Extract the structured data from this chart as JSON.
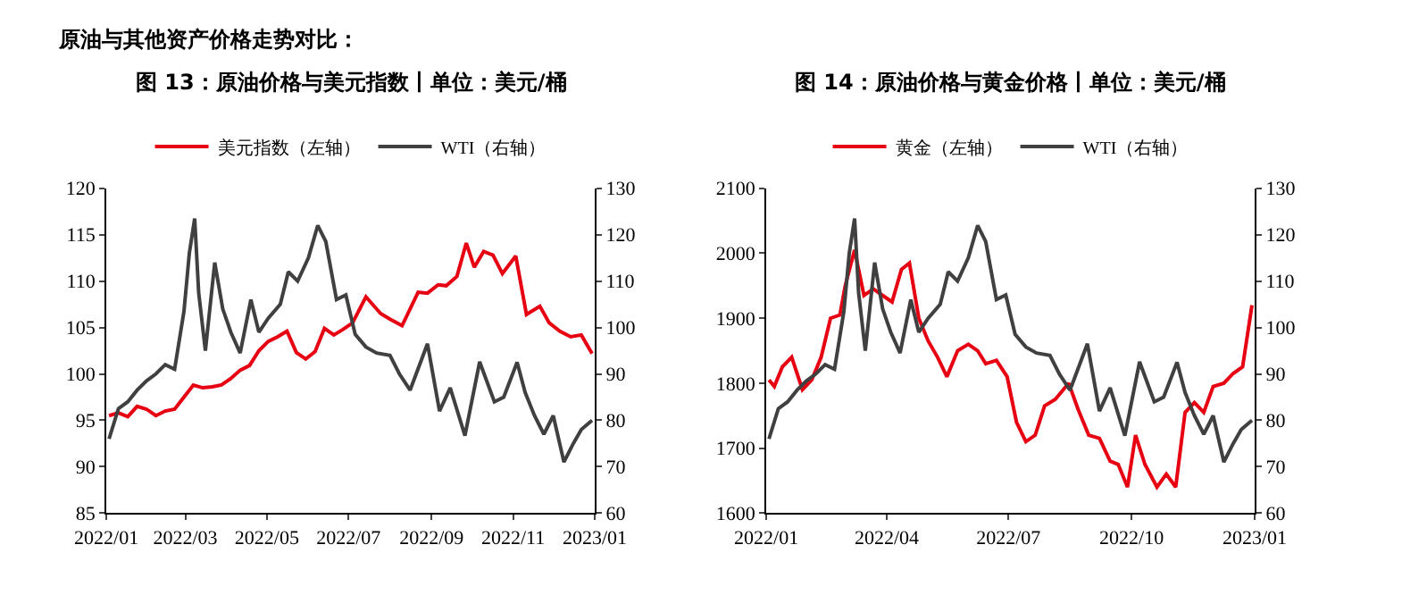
{
  "chart_data": [
    {
      "type": "line",
      "title": "图 13：原油价格与美元指数丨单位：美元/桶",
      "annotations": [
        "原油与其他资产价格走势对比："
      ],
      "xlim": [
        "2022-01-01",
        "2023-01-01"
      ],
      "xticks": [
        {
          "value": "2022-01-01",
          "label": "2022/01"
        },
        {
          "value": "2022-03-01",
          "label": "2022/03"
        },
        {
          "value": "2022-05-01",
          "label": "2022/05"
        },
        {
          "value": "2022-07-01",
          "label": "2022/07"
        },
        {
          "value": "2022-09-01",
          "label": "2022/09"
        },
        {
          "value": "2022-11-01",
          "label": "2022/11"
        },
        {
          "value": "2023-01-01",
          "label": "2023/01"
        }
      ],
      "ylim": [
        85,
        120
      ],
      "yticks": [
        85,
        90,
        95,
        100,
        105,
        110,
        115,
        120
      ],
      "y2lim": [
        60,
        130
      ],
      "y2ticks": [
        60,
        70,
        80,
        90,
        100,
        110,
        120,
        130
      ],
      "legend": "top",
      "marker": "none",
      "line_style": "solid",
      "series": [
        {
          "name": "美元指数（左轴）",
          "color": "#e60012",
          "axis": "y",
          "x": [
            "2022-01-03",
            "2022-01-10",
            "2022-01-17",
            "2022-01-24",
            "2022-01-31",
            "2022-02-07",
            "2022-02-14",
            "2022-02-21",
            "2022-02-28",
            "2022-03-07",
            "2022-03-14",
            "2022-03-21",
            "2022-03-28",
            "2022-04-04",
            "2022-04-11",
            "2022-04-18",
            "2022-04-25",
            "2022-05-02",
            "2022-05-09",
            "2022-05-16",
            "2022-05-23",
            "2022-05-30",
            "2022-06-06",
            "2022-06-13",
            "2022-06-20",
            "2022-06-27",
            "2022-07-04",
            "2022-07-14",
            "2022-07-25",
            "2022-08-01",
            "2022-08-10",
            "2022-08-22",
            "2022-08-29",
            "2022-09-06",
            "2022-09-12",
            "2022-09-20",
            "2022-09-27",
            "2022-10-03",
            "2022-10-10",
            "2022-10-17",
            "2022-10-24",
            "2022-11-03",
            "2022-11-11",
            "2022-11-21",
            "2022-11-28",
            "2022-12-06",
            "2022-12-14",
            "2022-12-22",
            "2022-12-30"
          ],
          "values": [
            95.5,
            95.8,
            95.4,
            96.5,
            96.2,
            95.5,
            96.0,
            96.2,
            97.5,
            98.8,
            98.5,
            98.6,
            98.8,
            99.5,
            100.4,
            100.9,
            102.5,
            103.5,
            104.0,
            104.6,
            102.3,
            101.6,
            102.4,
            104.9,
            104.2,
            104.8,
            105.5,
            108.3,
            106.5,
            105.9,
            105.2,
            108.8,
            108.7,
            109.6,
            109.5,
            110.5,
            114.1,
            111.5,
            113.2,
            112.8,
            110.8,
            112.7,
            106.4,
            107.3,
            105.5,
            104.6,
            104.0,
            104.2,
            102.2
          ]
        },
        {
          "name": "WTI（右轴）",
          "color": "#404040",
          "axis": "y2",
          "x": [
            "2022-01-03",
            "2022-01-10",
            "2022-01-17",
            "2022-01-24",
            "2022-01-31",
            "2022-02-07",
            "2022-02-14",
            "2022-02-21",
            "2022-02-28",
            "2022-03-04",
            "2022-03-08",
            "2022-03-11",
            "2022-03-16",
            "2022-03-23",
            "2022-03-29",
            "2022-04-04",
            "2022-04-11",
            "2022-04-19",
            "2022-04-25",
            "2022-05-02",
            "2022-05-11",
            "2022-05-17",
            "2022-05-24",
            "2022-06-01",
            "2022-06-08",
            "2022-06-14",
            "2022-06-22",
            "2022-06-29",
            "2022-07-06",
            "2022-07-14",
            "2022-07-22",
            "2022-08-01",
            "2022-08-08",
            "2022-08-16",
            "2022-08-29",
            "2022-09-07",
            "2022-09-15",
            "2022-09-26",
            "2022-10-07",
            "2022-10-18",
            "2022-10-25",
            "2022-11-04",
            "2022-11-10",
            "2022-11-17",
            "2022-11-24",
            "2022-12-01",
            "2022-12-09",
            "2022-12-16",
            "2022-12-22",
            "2022-12-30"
          ],
          "values": [
            76.0,
            82.5,
            84.0,
            86.5,
            88.5,
            90.0,
            92.0,
            91.0,
            103.5,
            116.0,
            123.5,
            107.5,
            95.0,
            114.0,
            104.0,
            99.0,
            94.5,
            106.0,
            99.0,
            102.0,
            105.0,
            112.0,
            110.0,
            115.0,
            122.0,
            118.5,
            106.0,
            107.0,
            98.5,
            95.8,
            94.5,
            94.0,
            90.0,
            86.5,
            96.5,
            82.0,
            87.0,
            76.7,
            92.6,
            84.0,
            85.0,
            92.5,
            86.0,
            81.0,
            77.0,
            81.0,
            71.0,
            75.0,
            78.0,
            80.0
          ]
        }
      ]
    },
    {
      "type": "line",
      "title": "图 14：原油价格与黄金价格丨单位：美元/桶",
      "xlim": [
        "2022-01-01",
        "2023-01-01"
      ],
      "xticks": [
        {
          "value": "2022-01-01",
          "label": "2022/01"
        },
        {
          "value": "2022-04-01",
          "label": "2022/04"
        },
        {
          "value": "2022-07-01",
          "label": "2022/07"
        },
        {
          "value": "2022-10-01",
          "label": "2022/10"
        },
        {
          "value": "2023-01-01",
          "label": "2023/01"
        }
      ],
      "ylim": [
        1600,
        2100
      ],
      "yticks": [
        1600,
        1700,
        1800,
        1900,
        2000,
        2100
      ],
      "y2lim": [
        60,
        130
      ],
      "y2ticks": [
        60,
        70,
        80,
        90,
        100,
        110,
        120,
        130
      ],
      "legend": "top",
      "marker": "none",
      "line_style": "solid",
      "series": [
        {
          "name": "黄金（左轴）",
          "color": "#e60012",
          "axis": "y",
          "x": [
            "2022-01-03",
            "2022-01-07",
            "2022-01-13",
            "2022-01-20",
            "2022-01-28",
            "2022-02-04",
            "2022-02-11",
            "2022-02-18",
            "2022-02-25",
            "2022-03-01",
            "2022-03-08",
            "2022-03-15",
            "2022-03-22",
            "2022-03-29",
            "2022-04-05",
            "2022-04-12",
            "2022-04-18",
            "2022-04-25",
            "2022-05-02",
            "2022-05-09",
            "2022-05-16",
            "2022-05-24",
            "2022-06-01",
            "2022-06-08",
            "2022-06-14",
            "2022-06-22",
            "2022-06-30",
            "2022-07-07",
            "2022-07-14",
            "2022-07-21",
            "2022-07-28",
            "2022-08-05",
            "2022-08-15",
            "2022-08-22",
            "2022-08-30",
            "2022-09-07",
            "2022-09-15",
            "2022-09-21",
            "2022-09-28",
            "2022-10-04",
            "2022-10-11",
            "2022-10-20",
            "2022-10-27",
            "2022-11-03",
            "2022-11-10",
            "2022-11-17",
            "2022-11-24",
            "2022-12-01",
            "2022-12-09",
            "2022-12-16",
            "2022-12-23",
            "2022-12-30"
          ],
          "values": [
            1805,
            1795,
            1825,
            1840,
            1790,
            1805,
            1840,
            1900,
            1905,
            1950,
            2005,
            1935,
            1945,
            1935,
            1925,
            1975,
            1985,
            1900,
            1865,
            1840,
            1810,
            1850,
            1860,
            1850,
            1830,
            1835,
            1810,
            1740,
            1710,
            1720,
            1765,
            1775,
            1800,
            1760,
            1720,
            1715,
            1680,
            1675,
            1640,
            1720,
            1675,
            1640,
            1660,
            1640,
            1755,
            1770,
            1755,
            1795,
            1800,
            1815,
            1825,
            1920
          ]
        },
        {
          "name": "WTI（右轴）",
          "color": "#404040",
          "axis": "y2",
          "x": [
            "2022-01-03",
            "2022-01-10",
            "2022-01-17",
            "2022-01-24",
            "2022-01-31",
            "2022-02-07",
            "2022-02-14",
            "2022-02-21",
            "2022-02-28",
            "2022-03-04",
            "2022-03-08",
            "2022-03-11",
            "2022-03-16",
            "2022-03-23",
            "2022-03-29",
            "2022-04-04",
            "2022-04-11",
            "2022-04-19",
            "2022-04-25",
            "2022-05-02",
            "2022-05-11",
            "2022-05-17",
            "2022-05-24",
            "2022-06-01",
            "2022-06-08",
            "2022-06-14",
            "2022-06-22",
            "2022-06-29",
            "2022-07-06",
            "2022-07-14",
            "2022-07-22",
            "2022-08-01",
            "2022-08-08",
            "2022-08-16",
            "2022-08-29",
            "2022-09-07",
            "2022-09-15",
            "2022-09-26",
            "2022-10-07",
            "2022-10-18",
            "2022-10-25",
            "2022-11-04",
            "2022-11-10",
            "2022-11-17",
            "2022-11-24",
            "2022-12-01",
            "2022-12-09",
            "2022-12-16",
            "2022-12-22",
            "2022-12-30"
          ],
          "values": [
            76.0,
            82.5,
            84.0,
            86.5,
            88.5,
            90.0,
            92.0,
            91.0,
            103.5,
            116.0,
            123.5,
            107.5,
            95.0,
            114.0,
            104.0,
            99.0,
            94.5,
            106.0,
            99.0,
            102.0,
            105.0,
            112.0,
            110.0,
            115.0,
            122.0,
            118.5,
            106.0,
            107.0,
            98.5,
            95.8,
            94.5,
            94.0,
            90.0,
            86.5,
            96.5,
            82.0,
            87.0,
            76.7,
            92.6,
            84.0,
            85.0,
            92.5,
            86.0,
            81.0,
            77.0,
            81.0,
            71.0,
            75.0,
            78.0,
            80.0
          ]
        }
      ]
    }
  ]
}
